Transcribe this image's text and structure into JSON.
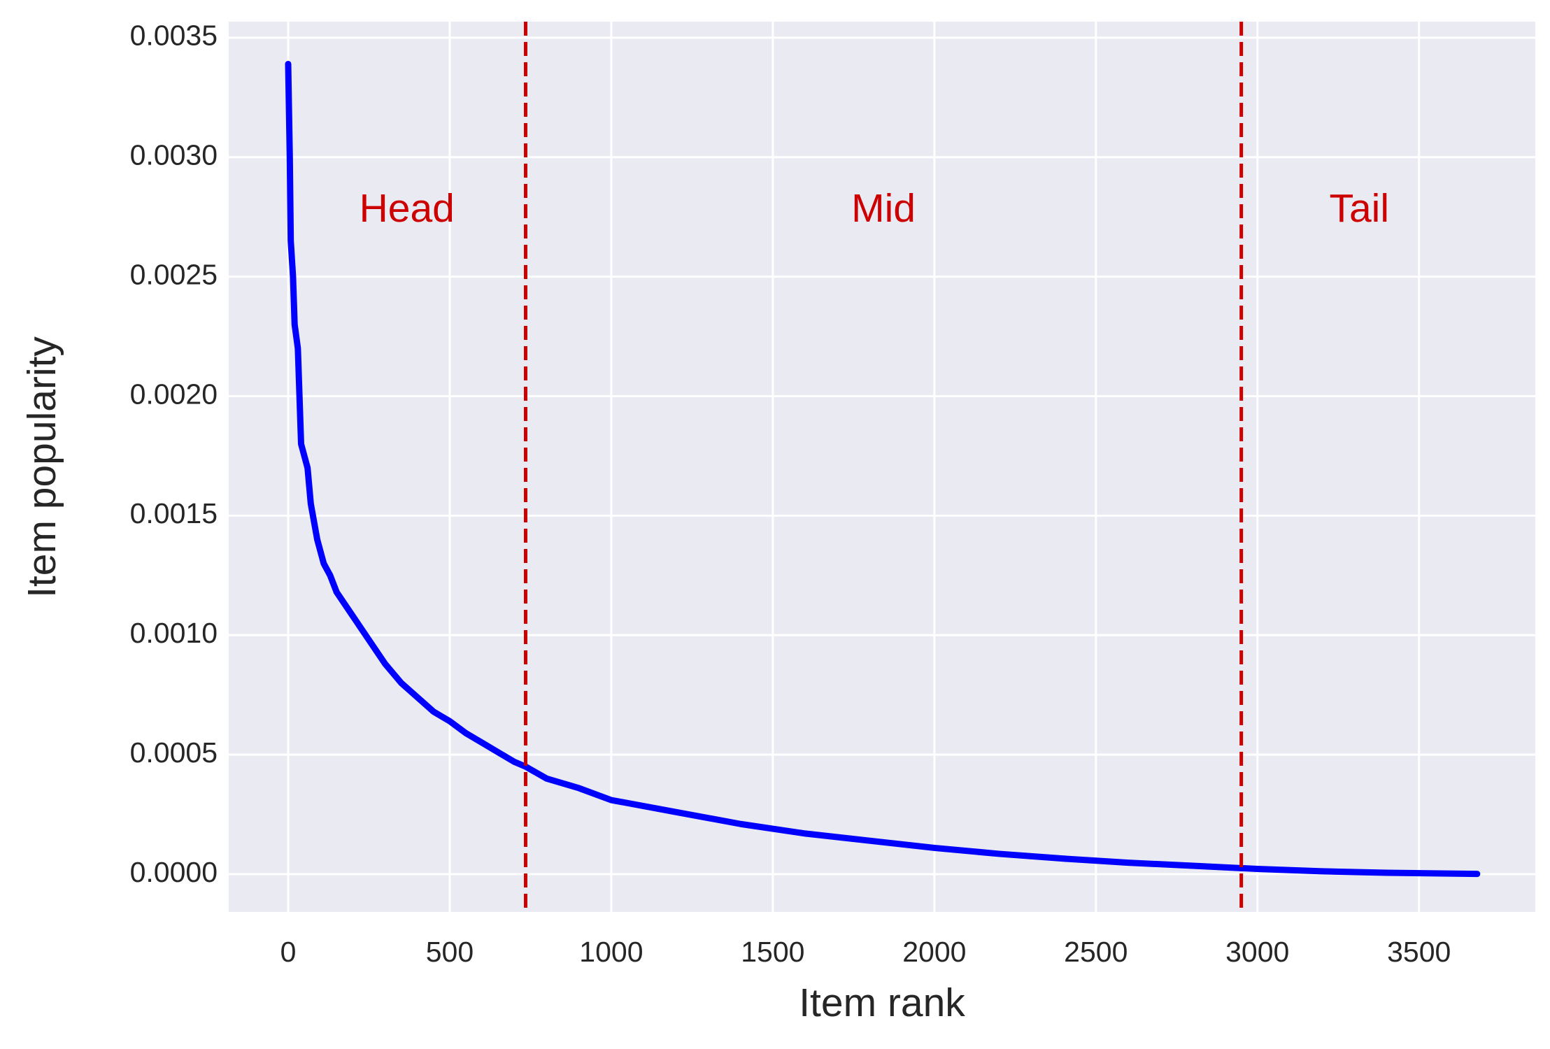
{
  "chart_data": {
    "type": "line",
    "xlabel": "Item rank",
    "ylabel": "Item popularity",
    "x": [
      0,
      5,
      8,
      15,
      20,
      30,
      40,
      60,
      70,
      90,
      110,
      130,
      150,
      200,
      250,
      300,
      350,
      400,
      450,
      500,
      550,
      600,
      650,
      700,
      735,
      800,
      900,
      1000,
      1200,
      1400,
      1600,
      1800,
      2000,
      2200,
      2400,
      2600,
      2800,
      3000,
      3200,
      3400,
      3680
    ],
    "series": [
      {
        "color": "#0000ff",
        "values": [
          0.00339,
          0.003,
          0.00265,
          0.0025,
          0.0023,
          0.0022,
          0.0018,
          0.0017,
          0.00155,
          0.0014,
          0.0013,
          0.00125,
          0.00118,
          0.00108,
          0.00098,
          0.00088,
          0.0008,
          0.00074,
          0.00068,
          0.00064,
          0.00059,
          0.00055,
          0.00051,
          0.00047,
          0.00045,
          0.0004,
          0.00036,
          0.00031,
          0.00026,
          0.00021,
          0.00017,
          0.00014,
          0.00011,
          8.5e-05,
          6.5e-05,
          4.8e-05,
          3.5e-05,
          2.2e-05,
          1.2e-05,
          6e-06,
          1e-06
        ]
      }
    ],
    "boundaries": [
      735,
      2950
    ],
    "boundary_color": "#cc0000",
    "regions": [
      "Head",
      "Mid",
      "Tail"
    ],
    "xlim": [
      -184,
      3860
    ],
    "ylim": [
      -0.000158,
      0.003567
    ],
    "xticks": [
      0,
      500,
      1000,
      1500,
      2000,
      2500,
      3000,
      3500
    ],
    "yticks": [
      {
        "value": 0,
        "label": "0.0000"
      },
      {
        "value": 0.0005,
        "label": "0.0005"
      },
      {
        "value": 0.001,
        "label": "0.0010"
      },
      {
        "value": 0.0015,
        "label": "0.0015"
      },
      {
        "value": 0.002,
        "label": "0.0020"
      },
      {
        "value": 0.0025,
        "label": "0.0025"
      },
      {
        "value": 0.003,
        "label": "0.0030"
      },
      {
        "value": 0.0035,
        "label": "0.0035"
      }
    ],
    "grid": true
  }
}
